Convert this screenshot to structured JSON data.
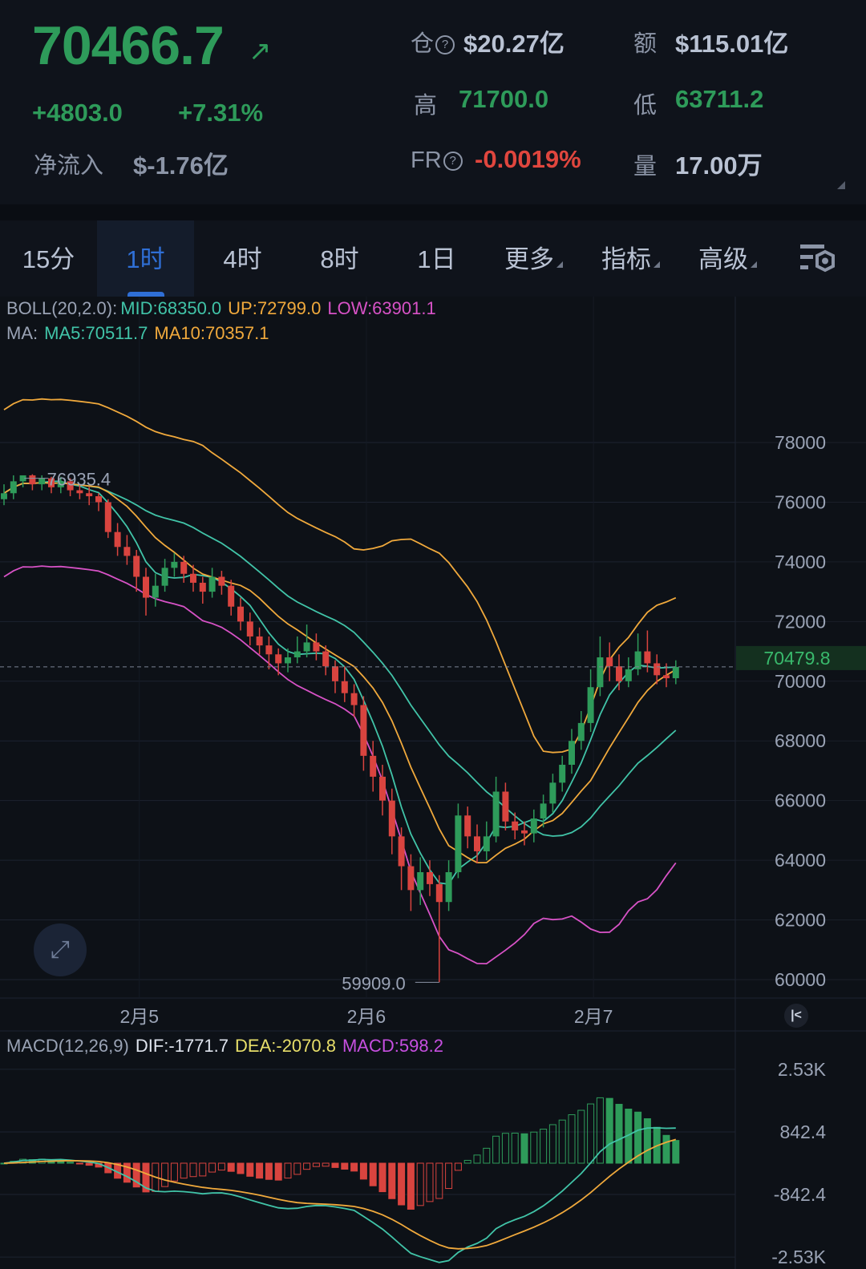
{
  "header": {
    "last_price": "70466.7",
    "change": "+4803.0",
    "change_pct": "+7.31%",
    "net_inflow_label": "净流入",
    "net_inflow": "$-1.76亿",
    "open_interest_label": "仓",
    "open_interest": "$20.27亿",
    "turnover_label": "额",
    "turnover": "$115.01亿",
    "high_label": "高",
    "high": "71700.0",
    "low_label": "低",
    "low": "63711.2",
    "funding_label": "FR",
    "funding": "-0.0019%",
    "volume_label": "量",
    "volume": "17.00万"
  },
  "tabs": [
    {
      "label": "15分"
    },
    {
      "label": "1时",
      "active": true
    },
    {
      "label": "4时"
    },
    {
      "label": "8时"
    },
    {
      "label": "1日"
    },
    {
      "label": "更多"
    },
    {
      "label": "指标"
    },
    {
      "label": "高级"
    }
  ],
  "colors": {
    "up": "#2e9b5a",
    "down": "#d9443f",
    "boll_mid": "#41c4a8",
    "boll_up": "#f0a93c",
    "boll_low": "#d752c6",
    "ma5": "#41c4a8",
    "ma10": "#f0a93c",
    "dif": "#41c4a8",
    "dea": "#f0a93c",
    "macd": "#c64fe0"
  },
  "legend": {
    "boll": "BOLL(20,2.0):",
    "boll_mid": "MID:68350.0",
    "boll_up": "UP:72799.0",
    "boll_low": "LOW:63901.1",
    "ma": "MA:",
    "ma5": "MA5:70511.7",
    "ma10": "MA10:70357.1",
    "macd": "MACD(12,26,9)",
    "dif": "DIF:-1771.7",
    "dea": "DEA:-2070.8",
    "macd_val": "MACD:598.2"
  },
  "chart_data": {
    "type": "candlestick",
    "interval": "1h",
    "price_axis": {
      "ticks": [
        "78000",
        "76000",
        "74000",
        "72000",
        "70000",
        "68000",
        "66000",
        "64000",
        "62000",
        "60000"
      ],
      "range": [
        60000,
        78000
      ]
    },
    "x_ticks": [
      {
        "label": "2月5",
        "index": 14.3
      },
      {
        "label": "2月6",
        "index": 38.3
      },
      {
        "label": "2月7",
        "index": 62.3
      }
    ],
    "current_price": "70479.8",
    "max_label": "76935.4",
    "min_label": "59909.0",
    "macd_axis": {
      "ticks": [
        "2.53K",
        "842.4",
        "-842.4",
        "-2.53K"
      ]
    },
    "ohlc": [
      [
        76100,
        76600,
        75900,
        76300
      ],
      [
        76300,
        76900,
        76100,
        76700
      ],
      [
        76700,
        76850,
        76500,
        76900
      ],
      [
        76900,
        76935.4,
        76400,
        76600
      ],
      [
        76600,
        76900,
        76400,
        76800
      ],
      [
        76800,
        76850,
        76300,
        76500
      ],
      [
        76500,
        76850,
        76300,
        76700
      ],
      [
        76700,
        76800,
        76200,
        76400
      ],
      [
        76400,
        76600,
        76100,
        76300
      ],
      [
        76300,
        76500,
        75900,
        76200
      ],
      [
        76200,
        76300,
        75700,
        76000
      ],
      [
        76000,
        76100,
        74800,
        75000
      ],
      [
        75000,
        75300,
        74200,
        74500
      ],
      [
        74500,
        74900,
        73900,
        74200
      ],
      [
        74200,
        74400,
        73000,
        73500
      ],
      [
        73500,
        73800,
        72200,
        72800
      ],
      [
        72800,
        73600,
        72500,
        73200
      ],
      [
        73200,
        74100,
        73000,
        73800
      ],
      [
        73800,
        74300,
        73500,
        74000
      ],
      [
        74000,
        74200,
        73300,
        73600
      ],
      [
        73600,
        73900,
        73000,
        73300
      ],
      [
        73300,
        73500,
        72600,
        73000
      ],
      [
        73000,
        73800,
        72800,
        73500
      ],
      [
        73500,
        73700,
        72900,
        73200
      ],
      [
        73200,
        73400,
        72200,
        72500
      ],
      [
        72500,
        72800,
        71700,
        72000
      ],
      [
        72000,
        72300,
        71200,
        71500
      ],
      [
        71500,
        71800,
        70900,
        71200
      ],
      [
        71200,
        71500,
        70400,
        70900
      ],
      [
        70900,
        71100,
        70200,
        70600
      ],
      [
        70600,
        71100,
        70300,
        70800
      ],
      [
        70800,
        71500,
        70600,
        71000
      ],
      [
        71000,
        71900,
        70800,
        71300
      ],
      [
        71300,
        71600,
        70700,
        71000
      ],
      [
        71000,
        71200,
        70200,
        70500
      ],
      [
        70500,
        70700,
        69600,
        70000
      ],
      [
        70000,
        70500,
        69300,
        69600
      ],
      [
        69600,
        69900,
        68800,
        69200
      ],
      [
        69200,
        69500,
        67000,
        67500
      ],
      [
        67500,
        68000,
        66300,
        66800
      ],
      [
        66800,
        67200,
        65500,
        66000
      ],
      [
        66000,
        66400,
        64200,
        64800
      ],
      [
        64800,
        65100,
        63000,
        63800
      ],
      [
        63800,
        64200,
        62300,
        63000
      ],
      [
        63000,
        64100,
        62500,
        63600
      ],
      [
        63600,
        64000,
        62800,
        63200
      ],
      [
        63200,
        63500,
        59909,
        62600
      ],
      [
        62600,
        64000,
        62300,
        63600
      ],
      [
        63600,
        65900,
        63400,
        65500
      ],
      [
        65500,
        65800,
        64400,
        64800
      ],
      [
        64800,
        65200,
        63900,
        64300
      ],
      [
        64300,
        65300,
        64000,
        64800
      ],
      [
        64800,
        66800,
        64600,
        66300
      ],
      [
        66300,
        66600,
        65000,
        65300
      ],
      [
        65300,
        65600,
        64700,
        65000
      ],
      [
        65000,
        65300,
        64500,
        64900
      ],
      [
        64900,
        65700,
        64600,
        65400
      ],
      [
        65400,
        66200,
        65100,
        65900
      ],
      [
        65900,
        66900,
        65600,
        66600
      ],
      [
        66600,
        67500,
        66300,
        67200
      ],
      [
        67200,
        68400,
        66900,
        68000
      ],
      [
        68000,
        69000,
        67700,
        68600
      ],
      [
        68600,
        70400,
        68300,
        69800
      ],
      [
        69800,
        71500,
        69500,
        70800
      ],
      [
        70800,
        71300,
        70000,
        70500
      ],
      [
        70500,
        70900,
        69700,
        70000
      ],
      [
        70000,
        70800,
        69800,
        70400
      ],
      [
        70400,
        71600,
        70200,
        71000
      ],
      [
        71000,
        71700,
        70300,
        70600
      ],
      [
        70600,
        70900,
        69900,
        70200
      ],
      [
        70200,
        70600,
        69800,
        70100
      ],
      [
        70100,
        70700,
        69900,
        70479.8
      ]
    ]
  }
}
